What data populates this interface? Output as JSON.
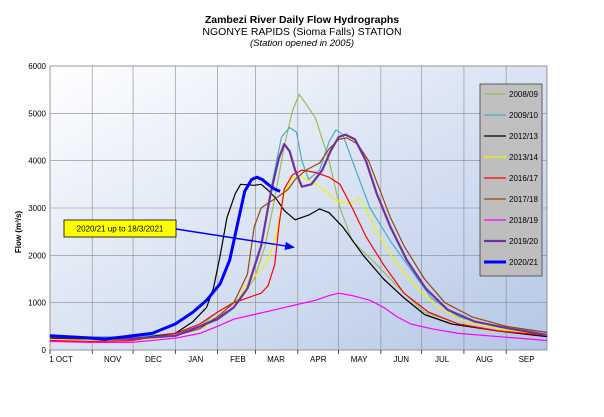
{
  "chart_data": {
    "type": "line",
    "title": "Zambezi River Daily Flow Hydrographs",
    "subtitle": "NGONYE RAPIDS (Sioma Falls) STATION",
    "subtitle2": "(Station opened in 2005)",
    "ylabel": "Flow (m³/s)",
    "xlabel": "",
    "ylim": [
      0,
      6000
    ],
    "yticks": [
      0,
      1000,
      2000,
      3000,
      4000,
      5000,
      6000
    ],
    "xticks": [
      "1 OCT",
      "NOV",
      "DEC",
      "JAN",
      "FEB",
      "MAR",
      "APR",
      "MAY",
      "JUN",
      "JUL",
      "AUG",
      "SEP"
    ],
    "x_unit": "day of hydrological year (1 Oct = 0)",
    "xlim": [
      0,
      365
    ],
    "grid": true,
    "legend_placement": "right",
    "annotation": {
      "text": "2020/21 up to 18/3/2021",
      "points_to": [
        181,
        2150
      ]
    },
    "series": [
      {
        "name": "2008/09",
        "color": "#9bbb59",
        "width": 1.2,
        "points": [
          [
            0,
            280
          ],
          [
            30,
            260
          ],
          [
            60,
            250
          ],
          [
            92,
            350
          ],
          [
            110,
            500
          ],
          [
            123,
            800
          ],
          [
            140,
            1100
          ],
          [
            150,
            1500
          ],
          [
            158,
            2200
          ],
          [
            165,
            3200
          ],
          [
            172,
            4300
          ],
          [
            178,
            5050
          ],
          [
            183,
            5400
          ],
          [
            188,
            5200
          ],
          [
            195,
            4900
          ],
          [
            205,
            4000
          ],
          [
            213,
            3000
          ],
          [
            222,
            2300
          ],
          [
            240,
            1800
          ],
          [
            260,
            1200
          ],
          [
            275,
            800
          ],
          [
            300,
            550
          ],
          [
            330,
            400
          ],
          [
            365,
            330
          ]
        ]
      },
      {
        "name": "2009/10",
        "color": "#4bacc6",
        "width": 1.2,
        "points": [
          [
            0,
            300
          ],
          [
            30,
            280
          ],
          [
            60,
            270
          ],
          [
            92,
            350
          ],
          [
            110,
            500
          ],
          [
            123,
            700
          ],
          [
            135,
            900
          ],
          [
            145,
            1300
          ],
          [
            155,
            2200
          ],
          [
            163,
            3500
          ],
          [
            170,
            4500
          ],
          [
            176,
            4700
          ],
          [
            181,
            4600
          ],
          [
            185,
            4000
          ],
          [
            190,
            3600
          ],
          [
            198,
            3800
          ],
          [
            205,
            4400
          ],
          [
            210,
            4650
          ],
          [
            215,
            4550
          ],
          [
            222,
            4000
          ],
          [
            235,
            3000
          ],
          [
            250,
            2300
          ],
          [
            265,
            1700
          ],
          [
            280,
            1100
          ],
          [
            300,
            700
          ],
          [
            330,
            480
          ],
          [
            365,
            380
          ]
        ]
      },
      {
        "name": "2012/13",
        "color": "#000000",
        "width": 1.2,
        "points": [
          [
            0,
            250
          ],
          [
            30,
            220
          ],
          [
            60,
            230
          ],
          [
            92,
            350
          ],
          [
            105,
            600
          ],
          [
            115,
            900
          ],
          [
            120,
            1300
          ],
          [
            125,
            2000
          ],
          [
            130,
            2800
          ],
          [
            136,
            3300
          ],
          [
            140,
            3500
          ],
          [
            150,
            3480
          ],
          [
            155,
            3500
          ],
          [
            160,
            3380
          ],
          [
            166,
            3200
          ],
          [
            172,
            2950
          ],
          [
            180,
            2750
          ],
          [
            190,
            2850
          ],
          [
            198,
            2980
          ],
          [
            205,
            2900
          ],
          [
            215,
            2600
          ],
          [
            230,
            2000
          ],
          [
            245,
            1500
          ],
          [
            260,
            1100
          ],
          [
            275,
            750
          ],
          [
            295,
            550
          ],
          [
            330,
            400
          ],
          [
            365,
            280
          ]
        ]
      },
      {
        "name": "2013/14",
        "color": "#f2f200",
        "width": 1.2,
        "points": [
          [
            0,
            220
          ],
          [
            30,
            210
          ],
          [
            60,
            200
          ],
          [
            92,
            300
          ],
          [
            110,
            450
          ],
          [
            123,
            650
          ],
          [
            135,
            900
          ],
          [
            145,
            1400
          ],
          [
            155,
            1700
          ],
          [
            160,
            1900
          ],
          [
            166,
            2400
          ],
          [
            172,
            3300
          ],
          [
            178,
            3650
          ],
          [
            185,
            3650
          ],
          [
            195,
            3500
          ],
          [
            205,
            3300
          ],
          [
            210,
            3150
          ],
          [
            220,
            3100
          ],
          [
            228,
            3200
          ],
          [
            240,
            2500
          ],
          [
            255,
            1800
          ],
          [
            270,
            1300
          ],
          [
            285,
            900
          ],
          [
            305,
            600
          ],
          [
            335,
            420
          ],
          [
            365,
            330
          ]
        ]
      },
      {
        "name": "2016/17",
        "color": "#ff0000",
        "width": 1.2,
        "points": [
          [
            0,
            200
          ],
          [
            30,
            180
          ],
          [
            60,
            200
          ],
          [
            92,
            350
          ],
          [
            110,
            550
          ],
          [
            123,
            800
          ],
          [
            135,
            1000
          ],
          [
            145,
            1100
          ],
          [
            155,
            1200
          ],
          [
            160,
            1350
          ],
          [
            165,
            1800
          ],
          [
            168,
            2600
          ],
          [
            172,
            3400
          ],
          [
            178,
            3700
          ],
          [
            185,
            3800
          ],
          [
            195,
            3750
          ],
          [
            205,
            3650
          ],
          [
            213,
            3500
          ],
          [
            222,
            3000
          ],
          [
            232,
            2400
          ],
          [
            245,
            1800
          ],
          [
            260,
            1200
          ],
          [
            278,
            800
          ],
          [
            300,
            550
          ],
          [
            330,
            400
          ],
          [
            365,
            310
          ]
        ]
      },
      {
        "name": "2017/18",
        "color": "#974706",
        "width": 1.2,
        "points": [
          [
            0,
            300
          ],
          [
            30,
            250
          ],
          [
            60,
            240
          ],
          [
            92,
            300
          ],
          [
            110,
            450
          ],
          [
            123,
            700
          ],
          [
            135,
            1000
          ],
          [
            145,
            1600
          ],
          [
            150,
            2600
          ],
          [
            155,
            3000
          ],
          [
            160,
            3100
          ],
          [
            168,
            3250
          ],
          [
            175,
            3400
          ],
          [
            180,
            3600
          ],
          [
            188,
            3800
          ],
          [
            198,
            3950
          ],
          [
            205,
            4250
          ],
          [
            212,
            4450
          ],
          [
            218,
            4480
          ],
          [
            226,
            4350
          ],
          [
            234,
            4000
          ],
          [
            242,
            3400
          ],
          [
            250,
            2800
          ],
          [
            260,
            2200
          ],
          [
            275,
            1500
          ],
          [
            290,
            1000
          ],
          [
            310,
            700
          ],
          [
            335,
            500
          ],
          [
            365,
            370
          ]
        ]
      },
      {
        "name": "2018/19",
        "color": "#ff00ff",
        "width": 1.2,
        "points": [
          [
            0,
            180
          ],
          [
            30,
            160
          ],
          [
            60,
            160
          ],
          [
            92,
            250
          ],
          [
            110,
            350
          ],
          [
            123,
            500
          ],
          [
            135,
            650
          ],
          [
            150,
            750
          ],
          [
            165,
            850
          ],
          [
            180,
            950
          ],
          [
            195,
            1050
          ],
          [
            205,
            1150
          ],
          [
            212,
            1200
          ],
          [
            222,
            1150
          ],
          [
            235,
            1050
          ],
          [
            245,
            900
          ],
          [
            255,
            700
          ],
          [
            265,
            550
          ],
          [
            280,
            450
          ],
          [
            300,
            350
          ],
          [
            330,
            280
          ],
          [
            365,
            200
          ]
        ]
      },
      {
        "name": "2019/20",
        "color": "#7030a0",
        "width": 2.2,
        "points": [
          [
            0,
            270
          ],
          [
            30,
            250
          ],
          [
            60,
            240
          ],
          [
            92,
            300
          ],
          [
            110,
            500
          ],
          [
            123,
            650
          ],
          [
            135,
            900
          ],
          [
            145,
            1300
          ],
          [
            155,
            2200
          ],
          [
            162,
            3300
          ],
          [
            168,
            4050
          ],
          [
            172,
            4350
          ],
          [
            176,
            4200
          ],
          [
            180,
            3800
          ],
          [
            185,
            3450
          ],
          [
            192,
            3500
          ],
          [
            200,
            3800
          ],
          [
            206,
            4200
          ],
          [
            212,
            4500
          ],
          [
            217,
            4550
          ],
          [
            224,
            4450
          ],
          [
            232,
            4000
          ],
          [
            240,
            3300
          ],
          [
            250,
            2600
          ],
          [
            262,
            1900
          ],
          [
            276,
            1300
          ],
          [
            292,
            850
          ],
          [
            312,
            600
          ],
          [
            338,
            450
          ],
          [
            365,
            320
          ]
        ]
      },
      {
        "name": "2020/21",
        "color": "#0000ff",
        "width": 3,
        "points": [
          [
            0,
            300
          ],
          [
            20,
            270
          ],
          [
            40,
            230
          ],
          [
            55,
            280
          ],
          [
            75,
            350
          ],
          [
            92,
            550
          ],
          [
            105,
            800
          ],
          [
            115,
            1050
          ],
          [
            125,
            1400
          ],
          [
            132,
            1900
          ],
          [
            138,
            2700
          ],
          [
            143,
            3350
          ],
          [
            148,
            3600
          ],
          [
            152,
            3650
          ],
          [
            156,
            3600
          ],
          [
            160,
            3500
          ],
          [
            165,
            3400
          ],
          [
            169,
            3350
          ]
        ]
      }
    ]
  }
}
